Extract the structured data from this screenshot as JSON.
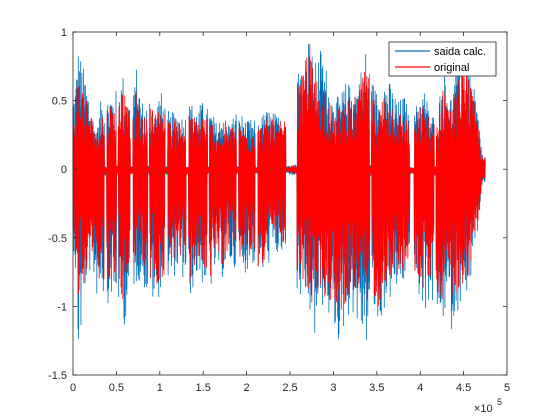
{
  "chart_data": {
    "type": "line",
    "title": "",
    "xlabel": "",
    "ylabel": "",
    "xlim": [
      0,
      5
    ],
    "ylim": [
      -1.5,
      1
    ],
    "x_exponent_label": "×10",
    "x_exponent_power": "5",
    "x_ticks": [
      0,
      0.5,
      1,
      1.5,
      2,
      2.5,
      3,
      3.5,
      4,
      4.5,
      5
    ],
    "x_tick_labels": [
      "0",
      "0.5",
      "1",
      "1.5",
      "2",
      "2.5",
      "3",
      "3.5",
      "4",
      "4.5",
      "5"
    ],
    "y_ticks": [
      -1.5,
      -1,
      -0.5,
      0,
      0.5,
      1
    ],
    "y_tick_labels": [
      "-1.5",
      "-1",
      "-0.5",
      "0",
      "0.5",
      "1"
    ],
    "grid": false,
    "legend_position": "top-right",
    "x_range_of_data": [
      0,
      4.75
    ],
    "series": [
      {
        "name": "saida calc.",
        "color": "#0072BD",
        "envelope": {
          "x": [
            0.02,
            0.06,
            0.1,
            0.14,
            0.18,
            0.23,
            0.28,
            0.33,
            0.38,
            0.43,
            0.48,
            0.53,
            0.58,
            0.63,
            0.68,
            0.73,
            0.78,
            0.83,
            0.9,
            0.95,
            1.0,
            1.05,
            1.12,
            1.2,
            1.28,
            1.35,
            1.42,
            1.5,
            1.58,
            1.65,
            1.72,
            1.8,
            1.9,
            2.0,
            2.08,
            2.15,
            2.25,
            2.35,
            2.45,
            2.55,
            2.65,
            2.72,
            2.78,
            2.85,
            2.92,
            3.0,
            3.08,
            3.15,
            3.22,
            3.3,
            3.38,
            3.45,
            3.52,
            3.6,
            3.68,
            3.75,
            3.82,
            3.9,
            3.98,
            4.05,
            4.12,
            4.2,
            4.28,
            4.35,
            4.42,
            4.5,
            4.58,
            4.65,
            4.72
          ],
          "upper": [
            0.6,
            0.9,
            0.8,
            0.7,
            0.6,
            0.4,
            0.3,
            0.55,
            0.5,
            0.6,
            0.55,
            0.65,
            0.7,
            0.55,
            0.45,
            0.75,
            0.55,
            0.45,
            0.6,
            0.45,
            0.6,
            0.5,
            0.4,
            0.45,
            0.38,
            0.5,
            0.45,
            0.5,
            0.45,
            0.35,
            0.4,
            0.35,
            0.45,
            0.35,
            0.38,
            0.38,
            0.45,
            0.4,
            0.42,
            0.75,
            0.8,
            0.98,
            0.75,
            0.9,
            0.75,
            0.5,
            0.55,
            0.65,
            0.6,
            0.7,
            0.9,
            0.65,
            0.55,
            0.7,
            0.6,
            0.5,
            0.55,
            0.3,
            0.55,
            0.6,
            0.4,
            0.45,
            0.8,
            0.55,
            0.75,
            0.7,
            0.7,
            0.5,
            0.1
          ],
          "lower": [
            -0.6,
            -1.4,
            -1.2,
            -0.9,
            -0.75,
            -0.8,
            -0.95,
            -0.85,
            -1.05,
            -0.9,
            -1.05,
            -1.0,
            -1.2,
            -1.0,
            -0.9,
            -0.85,
            -0.8,
            -0.9,
            -0.95,
            -1.05,
            -0.9,
            -0.9,
            -0.85,
            -0.75,
            -0.85,
            -0.95,
            -0.8,
            -0.85,
            -0.9,
            -0.75,
            -0.8,
            -0.7,
            -0.8,
            -0.75,
            -0.7,
            -0.85,
            -0.7,
            -0.65,
            -0.65,
            -0.95,
            -1.0,
            -1.05,
            -1.3,
            -1.0,
            -1.05,
            -1.2,
            -1.3,
            -1.1,
            -1.05,
            -1.2,
            -1.3,
            -1.05,
            -1.2,
            -1.0,
            -0.95,
            -0.9,
            -0.85,
            -0.75,
            -0.95,
            -1.05,
            -0.95,
            -1.15,
            -1.1,
            -1.2,
            -1.05,
            -0.95,
            -0.85,
            -0.55,
            -0.1
          ]
        }
      },
      {
        "name": "original",
        "color": "#FF0000",
        "envelope": {
          "x": [
            0.02,
            0.06,
            0.1,
            0.14,
            0.18,
            0.23,
            0.28,
            0.33,
            0.38,
            0.43,
            0.48,
            0.53,
            0.58,
            0.63,
            0.68,
            0.73,
            0.78,
            0.83,
            0.9,
            0.95,
            1.0,
            1.05,
            1.12,
            1.2,
            1.28,
            1.35,
            1.42,
            1.5,
            1.58,
            1.65,
            1.72,
            1.8,
            1.9,
            2.0,
            2.08,
            2.15,
            2.25,
            2.35,
            2.45,
            2.55,
            2.65,
            2.72,
            2.78,
            2.85,
            2.92,
            3.0,
            3.08,
            3.15,
            3.22,
            3.3,
            3.38,
            3.45,
            3.52,
            3.6,
            3.68,
            3.75,
            3.82,
            3.9,
            3.98,
            4.05,
            4.12,
            4.2,
            4.28,
            4.35,
            4.42,
            4.5,
            4.58,
            4.65,
            4.72
          ],
          "upper": [
            0.5,
            0.75,
            0.65,
            0.55,
            0.5,
            0.35,
            0.28,
            0.45,
            0.42,
            0.5,
            0.45,
            0.55,
            0.6,
            0.45,
            0.4,
            0.6,
            0.45,
            0.38,
            0.5,
            0.4,
            0.5,
            0.42,
            0.35,
            0.38,
            0.33,
            0.42,
            0.38,
            0.42,
            0.38,
            0.3,
            0.35,
            0.3,
            0.38,
            0.3,
            0.32,
            0.32,
            0.38,
            0.35,
            0.36,
            0.6,
            0.7,
            1.0,
            0.65,
            0.75,
            0.6,
            0.42,
            0.45,
            0.55,
            0.5,
            0.6,
            0.75,
            0.55,
            0.45,
            0.6,
            0.5,
            0.42,
            0.45,
            0.25,
            0.45,
            0.5,
            0.35,
            0.38,
            0.65,
            0.45,
            0.62,
            1.0,
            0.6,
            0.42,
            0.08
          ],
          "lower": [
            -0.5,
            -0.95,
            -0.9,
            -0.8,
            -0.65,
            -0.7,
            -0.85,
            -0.75,
            -0.9,
            -0.8,
            -0.9,
            -0.85,
            -1.0,
            -0.85,
            -0.8,
            -0.75,
            -0.7,
            -0.8,
            -0.85,
            -0.9,
            -0.8,
            -0.8,
            -0.75,
            -0.65,
            -0.75,
            -0.85,
            -0.7,
            -0.75,
            -0.8,
            -0.65,
            -0.7,
            -0.6,
            -0.7,
            -0.65,
            -0.6,
            -0.75,
            -0.6,
            -0.55,
            -0.55,
            -0.8,
            -0.85,
            -0.95,
            -1.05,
            -0.9,
            -0.95,
            -1.0,
            -1.1,
            -0.95,
            -0.9,
            -1.0,
            -1.1,
            -0.9,
            -1.0,
            -0.85,
            -0.8,
            -0.8,
            -0.75,
            -0.65,
            -0.85,
            -0.9,
            -0.8,
            -0.95,
            -0.95,
            -1.0,
            -0.9,
            -0.85,
            -0.75,
            -0.5,
            -0.08
          ]
        }
      }
    ]
  }
}
